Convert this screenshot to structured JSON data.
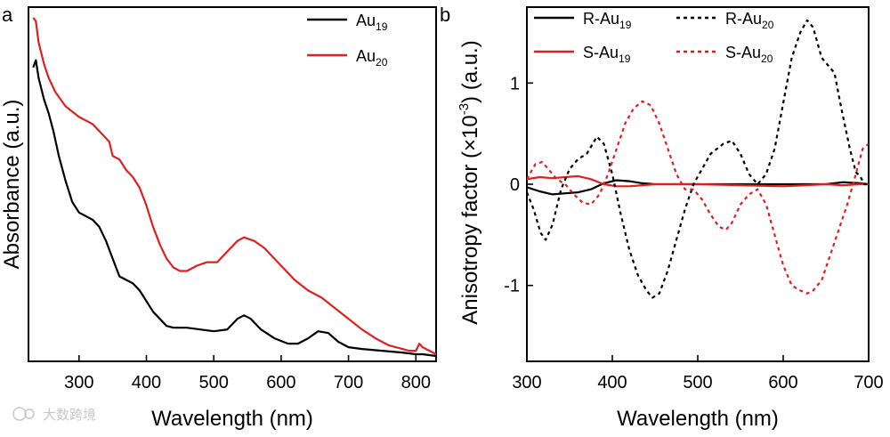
{
  "chart_data": [
    {
      "panel": "a",
      "type": "line",
      "xlabel": "Wavelength (nm)",
      "ylabel": "Absorbance (a.u.)",
      "xlim": [
        225,
        830
      ],
      "ylim": [
        0,
        1.0
      ],
      "xticks": [
        300,
        400,
        500,
        600,
        700,
        800
      ],
      "yticks_shown": false,
      "legend": {
        "position": "top-right",
        "entries": [
          {
            "base": "Au",
            "sub": "19",
            "color": "#000000",
            "dash": "solid"
          },
          {
            "base": "Au",
            "sub": "20",
            "color": "#e02020",
            "dash": "solid"
          }
        ]
      },
      "series": [
        {
          "name": "Au19",
          "color": "#000000",
          "dash": "solid",
          "points": [
            [
              232,
              0.83
            ],
            [
              236,
              0.85
            ],
            [
              240,
              0.8
            ],
            [
              248,
              0.74
            ],
            [
              255,
              0.7
            ],
            [
              262,
              0.65
            ],
            [
              270,
              0.58
            ],
            [
              280,
              0.51
            ],
            [
              290,
              0.45
            ],
            [
              300,
              0.42
            ],
            [
              310,
              0.41
            ],
            [
              320,
              0.4
            ],
            [
              330,
              0.38
            ],
            [
              340,
              0.34
            ],
            [
              350,
              0.29
            ],
            [
              360,
              0.24
            ],
            [
              370,
              0.23
            ],
            [
              380,
              0.22
            ],
            [
              390,
              0.2
            ],
            [
              400,
              0.17
            ],
            [
              410,
              0.14
            ],
            [
              420,
              0.12
            ],
            [
              430,
              0.1
            ],
            [
              440,
              0.095
            ],
            [
              460,
              0.095
            ],
            [
              480,
              0.09
            ],
            [
              500,
              0.085
            ],
            [
              520,
              0.09
            ],
            [
              535,
              0.12
            ],
            [
              545,
              0.13
            ],
            [
              555,
              0.12
            ],
            [
              570,
              0.09
            ],
            [
              590,
              0.065
            ],
            [
              610,
              0.05
            ],
            [
              625,
              0.05
            ],
            [
              640,
              0.065
            ],
            [
              655,
              0.085
            ],
            [
              670,
              0.08
            ],
            [
              685,
              0.055
            ],
            [
              700,
              0.04
            ],
            [
              720,
              0.035
            ],
            [
              750,
              0.03
            ],
            [
              780,
              0.025
            ],
            [
              800,
              0.02
            ],
            [
              810,
              0.02
            ],
            [
              830,
              0.015
            ]
          ]
        },
        {
          "name": "Au20",
          "color": "#e02020",
          "dash": "solid",
          "points": [
            [
              232,
              0.97
            ],
            [
              236,
              0.96
            ],
            [
              240,
              0.9
            ],
            [
              248,
              0.84
            ],
            [
              255,
              0.8
            ],
            [
              265,
              0.76
            ],
            [
              280,
              0.72
            ],
            [
              300,
              0.69
            ],
            [
              320,
              0.67
            ],
            [
              335,
              0.64
            ],
            [
              345,
              0.62
            ],
            [
              350,
              0.58
            ],
            [
              360,
              0.57
            ],
            [
              370,
              0.54
            ],
            [
              380,
              0.52
            ],
            [
              390,
              0.49
            ],
            [
              400,
              0.44
            ],
            [
              410,
              0.38
            ],
            [
              420,
              0.33
            ],
            [
              430,
              0.29
            ],
            [
              440,
              0.265
            ],
            [
              450,
              0.255
            ],
            [
              460,
              0.255
            ],
            [
              475,
              0.27
            ],
            [
              490,
              0.28
            ],
            [
              505,
              0.28
            ],
            [
              520,
              0.31
            ],
            [
              535,
              0.34
            ],
            [
              545,
              0.35
            ],
            [
              560,
              0.34
            ],
            [
              575,
              0.32
            ],
            [
              590,
              0.29
            ],
            [
              605,
              0.26
            ],
            [
              620,
              0.23
            ],
            [
              640,
              0.2
            ],
            [
              660,
              0.18
            ],
            [
              680,
              0.15
            ],
            [
              700,
              0.12
            ],
            [
              720,
              0.09
            ],
            [
              740,
              0.065
            ],
            [
              760,
              0.045
            ],
            [
              790,
              0.03
            ],
            [
              800,
              0.03
            ],
            [
              805,
              0.05
            ],
            [
              810,
              0.04
            ],
            [
              830,
              0.02
            ]
          ]
        }
      ],
      "panel_label": "a"
    },
    {
      "panel": "b",
      "type": "line",
      "xlabel": "Wavelength (nm)",
      "ylabel": "Anisotropy factor (×10",
      "ylabel_exponent": "-3",
      "ylabel_suffix": ") (a.u.)",
      "xlim": [
        300,
        700
      ],
      "ylim": [
        -1.75,
        1.75
      ],
      "xticks": [
        300,
        400,
        500,
        600,
        700
      ],
      "yticks": [
        -1,
        0,
        1
      ],
      "legend": {
        "position": "top",
        "entries": [
          {
            "base": "R-Au",
            "sub": "19",
            "color": "#000000",
            "dash": "solid"
          },
          {
            "base": "R-Au",
            "sub": "20",
            "color": "#000000",
            "dash": "dotted"
          },
          {
            "base": "S-Au",
            "sub": "19",
            "color": "#e02020",
            "dash": "solid"
          },
          {
            "base": "S-Au",
            "sub": "20",
            "color": "#e02020",
            "dash": "dotted"
          }
        ]
      },
      "series": [
        {
          "name": "R-Au19",
          "color": "#000000",
          "dash": "solid",
          "points": [
            [
              300,
              -0.03
            ],
            [
              315,
              -0.07
            ],
            [
              330,
              -0.1
            ],
            [
              345,
              -0.09
            ],
            [
              360,
              -0.08
            ],
            [
              375,
              -0.05
            ],
            [
              390,
              0.01
            ],
            [
              405,
              0.04
            ],
            [
              420,
              0.03
            ],
            [
              435,
              0.01
            ],
            [
              450,
              0.0
            ],
            [
              500,
              0.0
            ],
            [
              550,
              0.0
            ],
            [
              600,
              0.0
            ],
            [
              650,
              0.0
            ],
            [
              670,
              0.02
            ],
            [
              690,
              0.01
            ],
            [
              700,
              0.0
            ]
          ]
        },
        {
          "name": "S-Au19",
          "color": "#e02020",
          "dash": "solid",
          "points": [
            [
              300,
              0.05
            ],
            [
              315,
              0.07
            ],
            [
              330,
              0.06
            ],
            [
              345,
              0.07
            ],
            [
              360,
              0.08
            ],
            [
              375,
              0.05
            ],
            [
              390,
              0.0
            ],
            [
              405,
              -0.02
            ],
            [
              420,
              -0.02
            ],
            [
              435,
              -0.01
            ],
            [
              450,
              0.0
            ],
            [
              500,
              0.0
            ],
            [
              550,
              -0.01
            ],
            [
              600,
              -0.02
            ],
            [
              650,
              0.0
            ],
            [
              670,
              -0.01
            ],
            [
              690,
              0.0
            ],
            [
              700,
              0.0
            ]
          ]
        },
        {
          "name": "R-Au20",
          "color": "#000000",
          "dash": "dotted",
          "points": [
            [
              300,
              -0.08
            ],
            [
              308,
              -0.25
            ],
            [
              316,
              -0.48
            ],
            [
              322,
              -0.55
            ],
            [
              330,
              -0.4
            ],
            [
              340,
              -0.05
            ],
            [
              350,
              0.15
            ],
            [
              360,
              0.25
            ],
            [
              370,
              0.3
            ],
            [
              382,
              0.47
            ],
            [
              390,
              0.4
            ],
            [
              400,
              0.1
            ],
            [
              410,
              -0.3
            ],
            [
              420,
              -0.65
            ],
            [
              430,
              -0.9
            ],
            [
              440,
              -1.05
            ],
            [
              447,
              -1.12
            ],
            [
              455,
              -1.08
            ],
            [
              465,
              -0.85
            ],
            [
              475,
              -0.55
            ],
            [
              485,
              -0.25
            ],
            [
              495,
              0.0
            ],
            [
              505,
              0.15
            ],
            [
              515,
              0.3
            ],
            [
              530,
              0.4
            ],
            [
              540,
              0.43
            ],
            [
              550,
              0.3
            ],
            [
              560,
              0.1
            ],
            [
              570,
              0.0
            ],
            [
              580,
              0.1
            ],
            [
              590,
              0.35
            ],
            [
              600,
              0.8
            ],
            [
              610,
              1.25
            ],
            [
              620,
              1.5
            ],
            [
              628,
              1.62
            ],
            [
              635,
              1.55
            ],
            [
              645,
              1.25
            ],
            [
              655,
              1.15
            ],
            [
              660,
              1.1
            ],
            [
              668,
              0.75
            ],
            [
              678,
              0.35
            ],
            [
              685,
              0.12
            ],
            [
              690,
              0.08
            ],
            [
              695,
              0.0
            ],
            [
              700,
              0.0
            ]
          ]
        },
        {
          "name": "S-Au20",
          "color": "#e02020",
          "dash": "dotted",
          "points": [
            [
              300,
              0.05
            ],
            [
              310,
              0.2
            ],
            [
              318,
              0.22
            ],
            [
              325,
              0.15
            ],
            [
              335,
              0.05
            ],
            [
              345,
              0.0
            ],
            [
              355,
              -0.1
            ],
            [
              365,
              -0.18
            ],
            [
              375,
              -0.2
            ],
            [
              385,
              -0.1
            ],
            [
              395,
              0.1
            ],
            [
              405,
              0.35
            ],
            [
              415,
              0.6
            ],
            [
              425,
              0.75
            ],
            [
              435,
              0.82
            ],
            [
              445,
              0.78
            ],
            [
              455,
              0.6
            ],
            [
              465,
              0.35
            ],
            [
              475,
              0.1
            ],
            [
              485,
              -0.05
            ],
            [
              495,
              -0.05
            ],
            [
              505,
              -0.15
            ],
            [
              515,
              -0.3
            ],
            [
              525,
              -0.42
            ],
            [
              533,
              -0.45
            ],
            [
              540,
              -0.38
            ],
            [
              550,
              -0.2
            ],
            [
              560,
              -0.1
            ],
            [
              570,
              -0.05
            ],
            [
              580,
              -0.2
            ],
            [
              590,
              -0.5
            ],
            [
              600,
              -0.8
            ],
            [
              610,
              -1.0
            ],
            [
              620,
              -1.05
            ],
            [
              628,
              -1.08
            ],
            [
              635,
              -1.05
            ],
            [
              645,
              -0.95
            ],
            [
              655,
              -0.7
            ],
            [
              665,
              -0.45
            ],
            [
              675,
              -0.2
            ],
            [
              685,
              0.1
            ],
            [
              693,
              0.35
            ],
            [
              700,
              0.4
            ]
          ]
        }
      ],
      "panel_label": "b"
    }
  ],
  "watermark": "大数跨境"
}
